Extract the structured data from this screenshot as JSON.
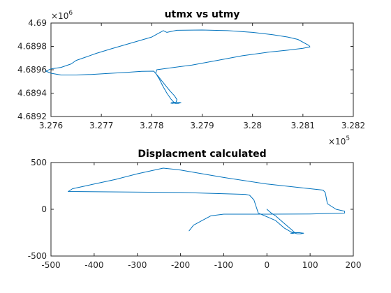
{
  "chart_data": [
    {
      "type": "line",
      "title": "utmx vs utmy",
      "xlabel": "",
      "ylabel": "",
      "xlim": [
        327600,
        328200
      ],
      "ylim": [
        4689200,
        4690000
      ],
      "x_ticks": [
        327600,
        327700,
        327800,
        327900,
        328000,
        328100,
        328200
      ],
      "x_tick_labels": [
        "3.276",
        "3.277",
        "3.278",
        "3.279",
        "3.28",
        "3.281",
        "3.282"
      ],
      "y_ticks": [
        4689200,
        4689400,
        4689600,
        4689800,
        4690000
      ],
      "y_tick_labels": [
        "4.6892",
        "4.6894",
        "4.6896",
        "4.6898",
        "4.69"
      ],
      "x_exponent": "5",
      "y_exponent": "6",
      "exponent_base": "×10",
      "grid": false,
      "legend": "none",
      "color": "#0072bd",
      "series": [
        {
          "x": [
            327804,
            327812,
            327820,
            327828,
            327836,
            327845,
            327850,
            327848,
            327842,
            327838,
            327840,
            327852,
            327858,
            327853,
            327846,
            327838,
            327830,
            327822,
            327815,
            327808,
            327810,
            327830,
            327880,
            327930,
            327980,
            328030,
            328070,
            328100,
            328114,
            328112,
            328090,
            328070,
            328040,
            328000,
            327950,
            327900,
            327850,
            327830,
            327823,
            327800,
            327760,
            327720,
            327690,
            327670,
            327650,
            327640,
            327620,
            327600,
            327590,
            327600,
            327620,
            327650,
            327680,
            327700,
            327720,
            327750,
            327780,
            327804
          ],
          "y": [
            4689588,
            4689548,
            4689505,
            4689462,
            4689420,
            4689378,
            4689345,
            4689320,
            4689312,
            4689314,
            4689320,
            4689322,
            4689318,
            4689312,
            4689312,
            4689350,
            4689400,
            4689460,
            4689520,
            4689570,
            4689600,
            4689612,
            4689640,
            4689680,
            4689720,
            4689750,
            4689768,
            4689784,
            4689796,
            4689808,
            4689860,
            4689880,
            4689900,
            4689920,
            4689935,
            4689940,
            4689938,
            4689920,
            4689935,
            4689880,
            4689830,
            4689780,
            4689740,
            4689710,
            4689680,
            4689650,
            4689620,
            4689608,
            4689588,
            4689570,
            4689555,
            4689555,
            4689560,
            4689565,
            4689570,
            4689578,
            4689586,
            4689588
          ]
        }
      ]
    },
    {
      "type": "line",
      "title": "Displacment calculated",
      "xlabel": "",
      "ylabel": "",
      "xlim": [
        -500,
        200
      ],
      "ylim": [
        -500,
        500
      ],
      "x_ticks": [
        -500,
        -400,
        -300,
        -200,
        -100,
        0,
        100,
        200
      ],
      "x_tick_labels": [
        "-500",
        "-400",
        "-300",
        "-200",
        "-100",
        "0",
        "100",
        "200"
      ],
      "y_ticks": [
        -500,
        0,
        500
      ],
      "y_tick_labels": [
        "-500",
        "0",
        "500"
      ],
      "grid": false,
      "legend": "none",
      "color": "#0072bd",
      "series": [
        {
          "x": [
            0,
            10,
            20,
            30,
            40,
            50,
            60,
            65,
            60,
            55,
            60,
            75,
            85,
            78,
            70,
            55,
            40,
            20,
            0,
            -20,
            -30,
            -40,
            -50,
            -200,
            -460,
            -450,
            -420,
            -400,
            -350,
            -300,
            -240,
            -200,
            -100,
            0,
            100,
            130,
            135,
            140,
            160,
            180,
            180,
            100,
            0,
            -90,
            -100,
            -130,
            -150,
            -170,
            -180
          ],
          "y": [
            0,
            -40,
            -70,
            -110,
            -150,
            -190,
            -230,
            -252,
            -258,
            -256,
            -250,
            -250,
            -255,
            -262,
            -262,
            -240,
            -200,
            -120,
            -80,
            -40,
            100,
            150,
            160,
            180,
            190,
            220,
            250,
            270,
            320,
            380,
            440,
            420,
            340,
            270,
            220,
            205,
            180,
            60,
            0,
            -20,
            -40,
            -50,
            -52,
            -52,
            -52,
            -70,
            -120,
            -170,
            -230
          ]
        }
      ]
    }
  ]
}
